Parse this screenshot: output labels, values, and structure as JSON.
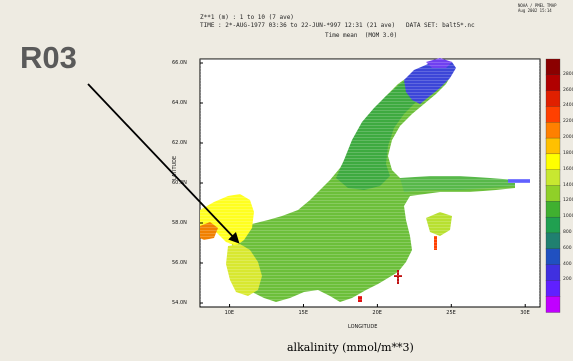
{
  "header": {
    "line1": "Z**1 (m) : 1 to 10 (7 ave)",
    "line2": "TIME : 2*-AUG-1977 03:36 to 22-JUN-*997 12:31 (21 ave)",
    "line3": "DATA SET: balt5*.nc",
    "line4": "Time mean  (MOM 3.0)",
    "stamp": "NOAA / PMEL TMAP\nAug 2002 15:14"
  },
  "slide_label": "R03",
  "caption": "alkalinity (mmol/m**3)",
  "axes": {
    "xlabel": "LONGITUDE",
    "ylabel": "LATITUDE",
    "xticks": [
      "10E",
      "15E",
      "20E",
      "25E",
      "30E"
    ],
    "yticks": [
      "54.0N",
      "56.0N",
      "58.0N",
      "60.0N",
      "62.0N",
      "64.0N",
      "66.0N"
    ]
  },
  "chart_data": {
    "type": "heatmap",
    "title": "",
    "xlabel": "LONGITUDE",
    "ylabel": "LATITUDE",
    "xlim": [
      8,
      31
    ],
    "ylim": [
      53.8,
      66.2
    ],
    "colorbar_levels": [
      2800,
      2600,
      2400,
      2200,
      2000,
      1800,
      1600,
      1400,
      1200,
      1000,
      800,
      600,
      400,
      200
    ],
    "colorbar_colors": [
      "#8b0000",
      "#b00000",
      "#e02000",
      "#ff4000",
      "#ff8000",
      "#ffc000",
      "#ffff00",
      "#c8e830",
      "#90d028",
      "#40b030",
      "#20a050",
      "#208070",
      "#2050c0",
      "#4030e0",
      "#6020ff",
      "#c000ff"
    ]
  },
  "annotation": {
    "arrow_target": "western Baltic near Denmark"
  }
}
